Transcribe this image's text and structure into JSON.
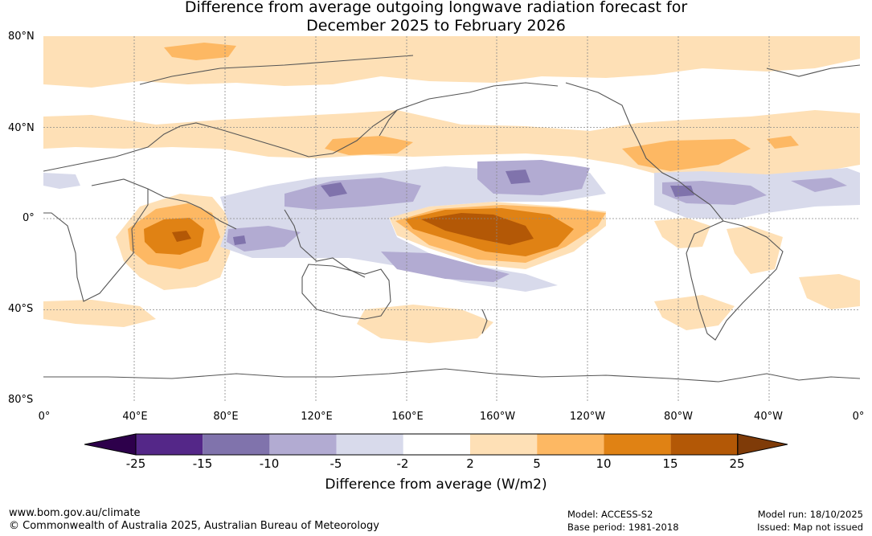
{
  "title": {
    "line1": "Difference from average outgoing longwave radiation forecast for",
    "line2": "December 2025 to February 2026"
  },
  "axes": {
    "lat_labels": [
      "80°N",
      "40°N",
      "0°",
      "40°S",
      "80°S"
    ],
    "lon_labels": [
      "0°",
      "40°E",
      "80°E",
      "120°E",
      "160°E",
      "160°W",
      "120°W",
      "80°W",
      "40°W",
      "0°"
    ]
  },
  "colorbar": {
    "title": "Difference from average (W/m2)",
    "ticks": [
      "-25",
      "-15",
      "-10",
      "-5",
      "-2",
      "2",
      "5",
      "10",
      "15",
      "25"
    ],
    "colors": [
      "#2d004b",
      "#542788",
      "#8073ac",
      "#b2abd2",
      "#d8daeb",
      "#ffffff",
      "#fee0b6",
      "#fdb863",
      "#e08214",
      "#b35806",
      "#7f3b08"
    ]
  },
  "footer": {
    "website": "www.bom.gov.au/climate",
    "copyright": "© Commonwealth of Australia 2025, Australian Bureau of Meteorology",
    "model": "Model: ACCESS-S2",
    "base_period": "Base period: 1981-2018",
    "model_run": "Model run: 18/10/2025",
    "issued": "Issued: Map not issued"
  }
}
